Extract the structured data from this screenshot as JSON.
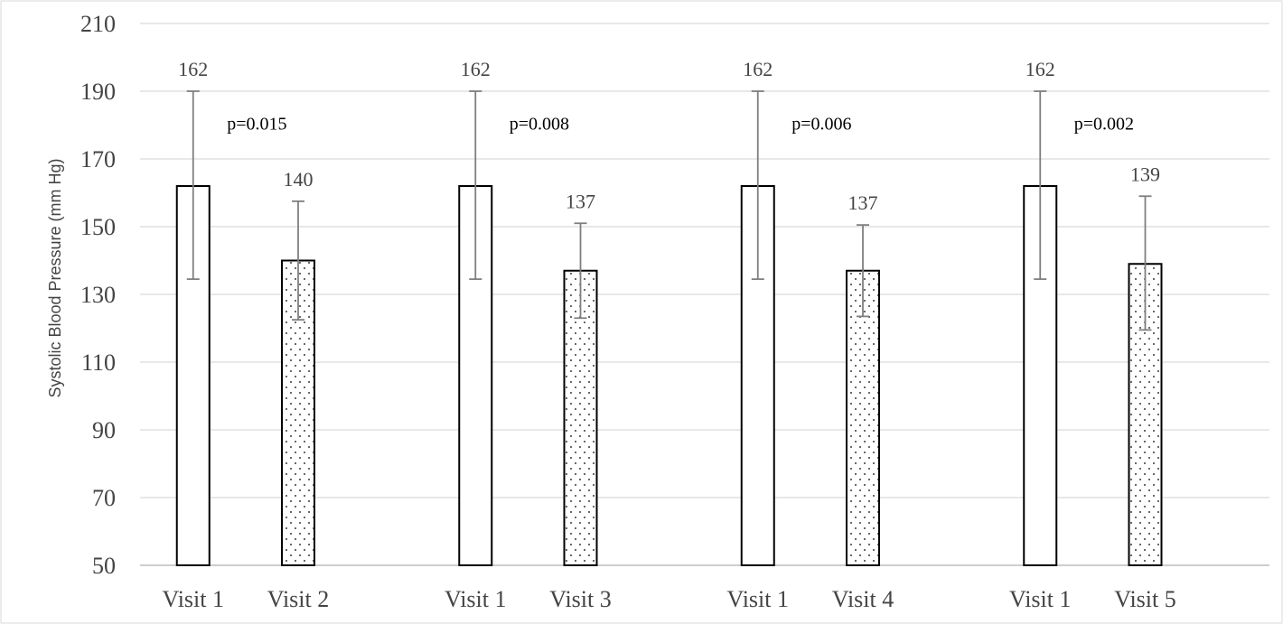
{
  "chart_data": {
    "type": "bar",
    "ylabel": "Systolic Blood Pressure (mm Hg)",
    "ylim": [
      50,
      210
    ],
    "y_ticks": [
      50,
      70,
      90,
      110,
      130,
      150,
      170,
      190,
      210
    ],
    "grid": true,
    "groups": [
      {
        "bars": [
          {
            "category": "Visit 1",
            "value": 162,
            "err_low": 134.5,
            "err_high": 190,
            "pattern": "outline"
          },
          {
            "category": "Visit 2",
            "value": 140,
            "err_low": 122.5,
            "err_high": 157.5,
            "pattern": "dotted"
          }
        ],
        "p_value": "p=0.015"
      },
      {
        "bars": [
          {
            "category": "Visit 1",
            "value": 162,
            "err_low": 134.5,
            "err_high": 190,
            "pattern": "outline"
          },
          {
            "category": "Visit 3",
            "value": 137,
            "err_low": 123,
            "err_high": 151,
            "pattern": "dotted"
          }
        ],
        "p_value": "p=0.008"
      },
      {
        "bars": [
          {
            "category": "Visit 1",
            "value": 162,
            "err_low": 134.5,
            "err_high": 190,
            "pattern": "outline"
          },
          {
            "category": "Visit 4",
            "value": 137,
            "err_low": 123.5,
            "err_high": 150.5,
            "pattern": "dotted"
          }
        ],
        "p_value": "p=0.006"
      },
      {
        "bars": [
          {
            "category": "Visit 1",
            "value": 162,
            "err_low": 134.5,
            "err_high": 190,
            "pattern": "outline"
          },
          {
            "category": "Visit 5",
            "value": 139,
            "err_low": 119.5,
            "err_high": 159,
            "pattern": "dotted"
          }
        ],
        "p_value": "p=0.002"
      }
    ]
  }
}
